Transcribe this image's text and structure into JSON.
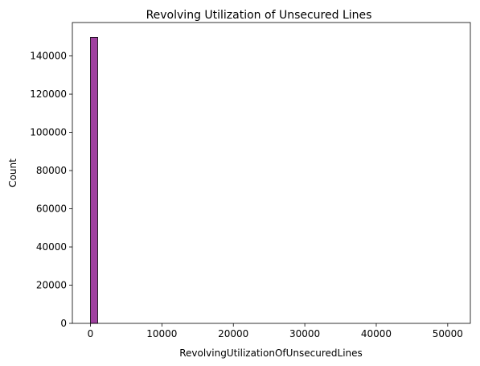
{
  "chart_data": {
    "type": "bar",
    "title": "Revolving Utilization of Unsecured Lines",
    "xlabel": "RevolvingUtilizationOfUnsecuredLines",
    "ylabel": "Count",
    "xlim": [
      -2532,
      53169
    ],
    "ylim": [
      0,
      157500
    ],
    "x_ticks": [
      0,
      10000,
      20000,
      30000,
      40000,
      50000
    ],
    "y_ticks": [
      0,
      20000,
      40000,
      60000,
      80000,
      100000,
      120000,
      140000
    ],
    "bin_width": 1012.75,
    "bins": [
      {
        "x0": 0,
        "x1": 1012.75,
        "count": 149750
      }
    ],
    "bar_color": "#800080",
    "grid": false,
    "legend": "none"
  }
}
